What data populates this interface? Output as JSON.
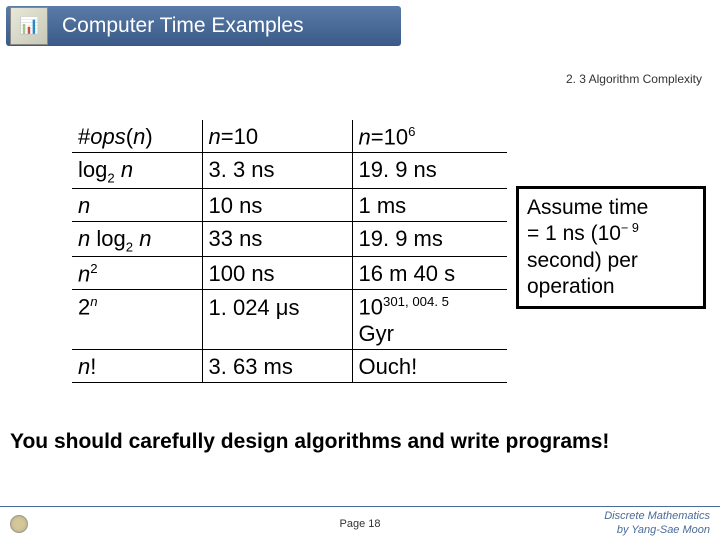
{
  "header": {
    "title": "Computer Time Examples",
    "section": "2. 3 Algorithm Complexity"
  },
  "table": {
    "header": {
      "c1": "#ops(n)",
      "c2_pre": "n",
      "c2_post": "=10",
      "c3_pre": "n",
      "c3_post": "=10",
      "c3_exp": "6"
    },
    "rows": [
      {
        "c1_html": "log<sub>2</sub> <span class='ital'>n</span>",
        "c2": "3. 3 ns",
        "c3": "19. 9 ns"
      },
      {
        "c1_html": "<span class='ital'>n</span>",
        "c2": "10 ns",
        "c3": "1 ms"
      },
      {
        "c1_html": "<span class='ital'>n</span> log<sub>2</sub> <span class='ital'>n</span>",
        "c2": "33 ns",
        "c3": "19. 9 ms"
      },
      {
        "c1_html": "<span class='ital'>n</span><sup>2</sup>",
        "c2": "100 ns",
        "c3": "16 m 40 s"
      },
      {
        "c1_html": "2<sup><span class='ital'>n</span></sup>",
        "c2": "1. 024 μs",
        "c3_html": "10<sup>301, 004. 5</sup><br>Gyr"
      },
      {
        "c1_html": "<span class='ital'>n</span>!",
        "c2": "3. 63 ms",
        "c3": "Ouch!"
      }
    ]
  },
  "note": {
    "l1": "Assume time",
    "l2_pre": "= 1 ns (10",
    "l2_exp": "− 9",
    "l3": "second) per",
    "l4": "operation"
  },
  "advice": "You should carefully design algorithms and write programs!",
  "footer": {
    "page": "Page 18",
    "credit1": "Discrete Mathematics",
    "credit2": "by Yang-Sae Moon"
  }
}
